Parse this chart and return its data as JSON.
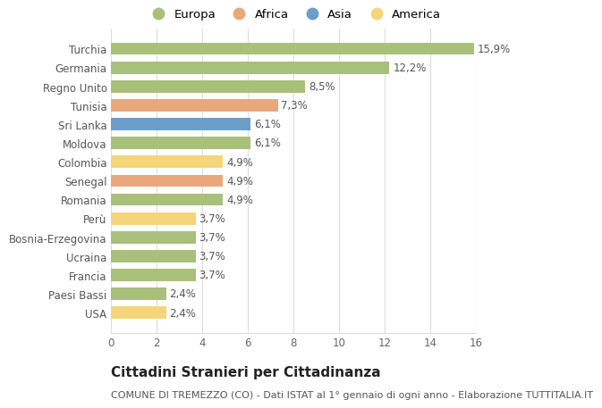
{
  "countries": [
    "USA",
    "Paesi Bassi",
    "Francia",
    "Ucraina",
    "Bosnia-Erzegovina",
    "Perù",
    "Romania",
    "Senegal",
    "Colombia",
    "Moldova",
    "Sri Lanka",
    "Tunisia",
    "Regno Unito",
    "Germania",
    "Turchia"
  ],
  "values": [
    2.4,
    2.4,
    3.7,
    3.7,
    3.7,
    3.7,
    4.9,
    4.9,
    4.9,
    6.1,
    6.1,
    7.3,
    8.5,
    12.2,
    15.9
  ],
  "labels": [
    "2,4%",
    "2,4%",
    "3,7%",
    "3,7%",
    "3,7%",
    "3,7%",
    "4,9%",
    "4,9%",
    "4,9%",
    "6,1%",
    "6,1%",
    "7,3%",
    "8,5%",
    "12,2%",
    "15,9%"
  ],
  "continents": [
    "America",
    "Europa",
    "Europa",
    "Europa",
    "Europa",
    "America",
    "Europa",
    "Africa",
    "America",
    "Europa",
    "Asia",
    "Africa",
    "Europa",
    "Europa",
    "Europa"
  ],
  "colors": {
    "Europa": "#a8c07a",
    "Africa": "#e8a87c",
    "Asia": "#6b9ec8",
    "America": "#f5d57a"
  },
  "legend_order": [
    "Europa",
    "Africa",
    "Asia",
    "America"
  ],
  "title": "Cittadini Stranieri per Cittadinanza",
  "subtitle": "COMUNE DI TREMEZZO (CO) - Dati ISTAT al 1° gennaio di ogni anno - Elaborazione TUTTITALIA.IT",
  "xlim": [
    0,
    16
  ],
  "xticks": [
    0,
    2,
    4,
    6,
    8,
    10,
    12,
    14,
    16
  ],
  "background_color": "#ffffff",
  "grid_color": "#dddddd",
  "bar_height": 0.65,
  "label_fontsize": 8.5,
  "tick_fontsize": 8.5,
  "title_fontsize": 11,
  "subtitle_fontsize": 8,
  "legend_fontsize": 9.5
}
